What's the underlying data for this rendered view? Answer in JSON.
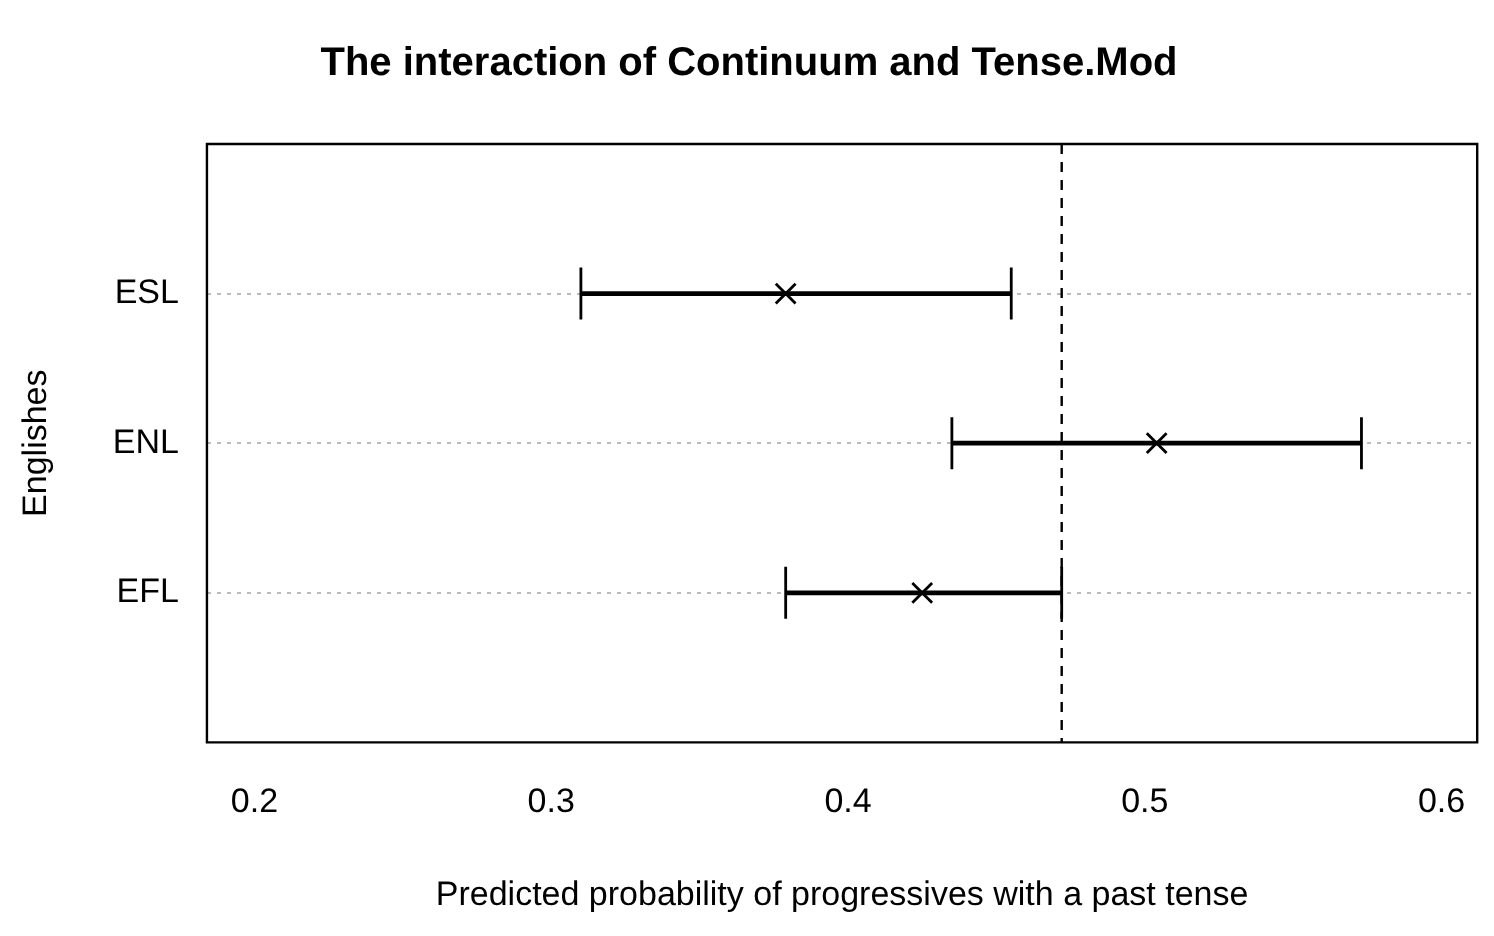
{
  "chart_data": {
    "type": "scatter",
    "title": "The interaction of Continuum and Tense.Mod",
    "xlabel": "Predicted probability of progressives with a past tense",
    "ylabel": "Englishes",
    "orientation": "horizontal",
    "categories": [
      "ESL",
      "ENL",
      "EFL"
    ],
    "values": [
      0.379,
      0.504,
      0.425
    ],
    "errors": [
      [
        0.31,
        0.455
      ],
      [
        0.435,
        0.573
      ],
      [
        0.379,
        0.472
      ]
    ],
    "color": "#000000",
    "marker": "cross",
    "xlim": [
      0.184,
      0.612
    ],
    "xticks": [
      0.2,
      0.3,
      0.4,
      0.5,
      0.6
    ],
    "ref_lines": [
      {
        "axis": "x",
        "value": 0.472,
        "line_style": "dashed",
        "color": "#000000"
      }
    ],
    "grid": "y",
    "legend": false
  }
}
